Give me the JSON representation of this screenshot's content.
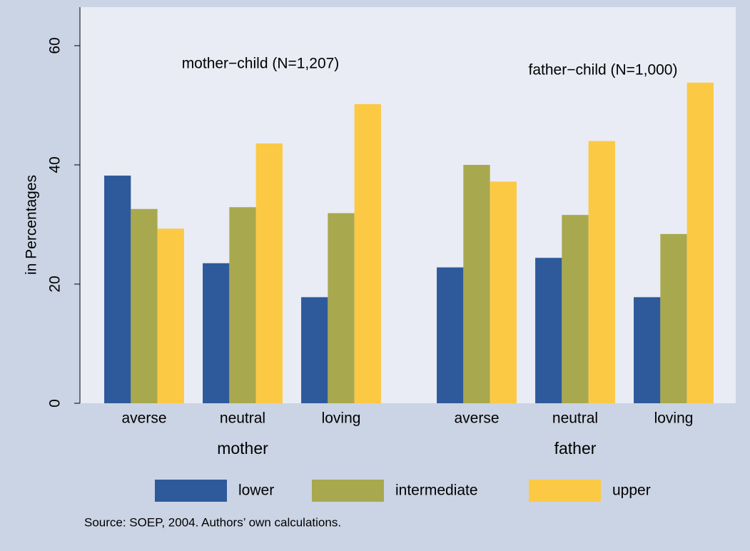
{
  "chart_data": {
    "type": "bar",
    "ylabel": "in Percentages",
    "groups": [
      {
        "label": "mother",
        "categories": [
          "averse",
          "neutral",
          "loving"
        ]
      },
      {
        "label": "father",
        "categories": [
          "averse",
          "neutral",
          "loving"
        ]
      }
    ],
    "series": [
      {
        "name": "lower",
        "color": "#2e5a9b",
        "values": [
          38.2,
          23.5,
          17.8,
          22.8,
          24.4,
          17.8
        ]
      },
      {
        "name": "intermediate",
        "color": "#a8a84e",
        "values": [
          32.6,
          32.9,
          31.9,
          40.0,
          31.6,
          28.4
        ]
      },
      {
        "name": "upper",
        "color": "#fcc945",
        "values": [
          29.3,
          43.6,
          50.2,
          37.2,
          44.0,
          53.8
        ]
      }
    ],
    "ylim": [
      0,
      60
    ],
    "yticks": [
      0,
      20,
      40,
      60
    ],
    "grid": false,
    "annotations": [
      "mother−child (N=1,207)",
      "father−child (N=1,000)"
    ],
    "note": "Source: SOEP, 2004. Authors’ own calculations."
  }
}
